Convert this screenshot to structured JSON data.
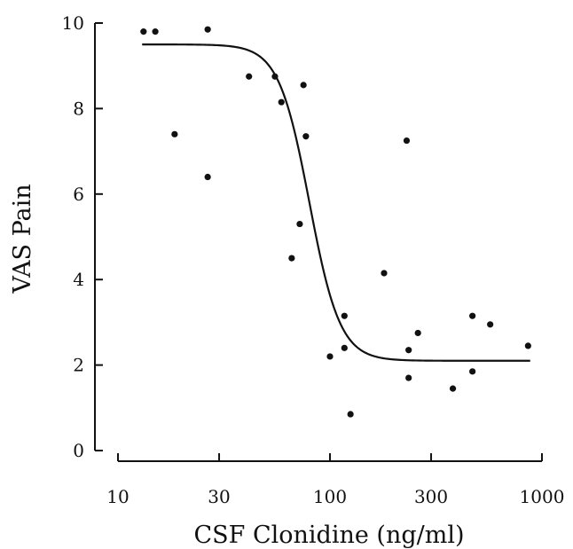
{
  "chart_data": {
    "type": "scatter",
    "xlabel": "CSF Clonidine (ng/ml)",
    "ylabel": "VAS Pain",
    "xscale": "log",
    "xlim": [
      10,
      1000
    ],
    "ylim": [
      0,
      10
    ],
    "x_ticks": [
      {
        "value": 10,
        "label": "10"
      },
      {
        "value": 30,
        "label": "30"
      },
      {
        "value": 100,
        "label": "100"
      },
      {
        "value": 300,
        "label": "300"
      },
      {
        "value": 1000,
        "label": "1000"
      }
    ],
    "y_ticks": [
      {
        "value": 0,
        "label": "0"
      },
      {
        "value": 2,
        "label": "2"
      },
      {
        "value": 4,
        "label": "4"
      },
      {
        "value": 6,
        "label": "6"
      },
      {
        "value": 8,
        "label": "8"
      },
      {
        "value": 10,
        "label": "10"
      }
    ],
    "points": [
      {
        "x": 13.2,
        "y": 9.8
      },
      {
        "x": 15.0,
        "y": 9.8
      },
      {
        "x": 18.5,
        "y": 7.4
      },
      {
        "x": 26.5,
        "y": 9.85
      },
      {
        "x": 26.5,
        "y": 6.4
      },
      {
        "x": 41.5,
        "y": 8.75
      },
      {
        "x": 55,
        "y": 8.75
      },
      {
        "x": 59,
        "y": 8.15
      },
      {
        "x": 75,
        "y": 8.55
      },
      {
        "x": 77,
        "y": 7.35
      },
      {
        "x": 72,
        "y": 5.3
      },
      {
        "x": 66,
        "y": 4.5
      },
      {
        "x": 100,
        "y": 2.2
      },
      {
        "x": 117,
        "y": 3.15
      },
      {
        "x": 117,
        "y": 2.4
      },
      {
        "x": 125,
        "y": 0.85
      },
      {
        "x": 180,
        "y": 4.15
      },
      {
        "x": 230,
        "y": 7.25
      },
      {
        "x": 235,
        "y": 2.35
      },
      {
        "x": 235,
        "y": 1.7
      },
      {
        "x": 260,
        "y": 2.75
      },
      {
        "x": 380,
        "y": 1.45
      },
      {
        "x": 470,
        "y": 3.15
      },
      {
        "x": 470,
        "y": 1.85
      },
      {
        "x": 570,
        "y": 2.95
      },
      {
        "x": 860,
        "y": 2.45
      }
    ],
    "fit_curve": {
      "type": "sigmoid",
      "top": 9.5,
      "bottom": 2.1,
      "ec50": 80,
      "hill": 6,
      "x_range": [
        13,
        880
      ]
    }
  }
}
